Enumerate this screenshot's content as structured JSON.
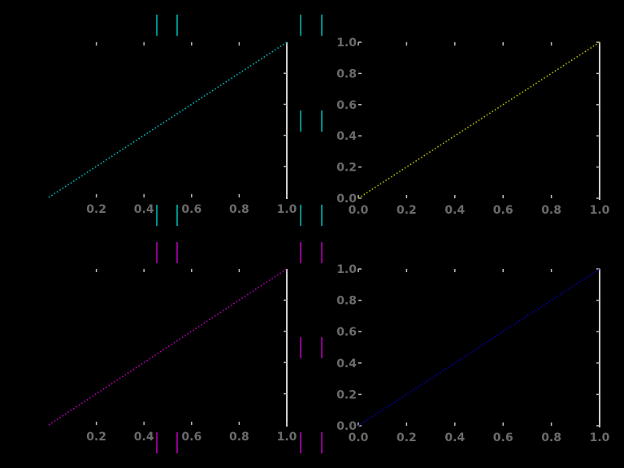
{
  "figure": {
    "background": "#000000"
  },
  "chart_data": [
    {
      "type": "line",
      "id": "top-left",
      "xlim": [
        0,
        1
      ],
      "ylim": [
        0,
        1
      ],
      "xticks": [
        "0.2",
        "0.4",
        "0.6",
        "0.8",
        "1.0"
      ],
      "yticks": [],
      "series": [
        {
          "color": "#00bfbf",
          "style": "dotted",
          "x": [
            0.0,
            1.0
          ],
          "y": [
            0.0,
            1.0
          ]
        }
      ]
    },
    {
      "type": "line",
      "id": "top-right",
      "xlim": [
        0,
        1
      ],
      "ylim": [
        0,
        1
      ],
      "xticks": [
        "0.0",
        "0.2",
        "0.4",
        "0.6",
        "0.8",
        "1.0"
      ],
      "yticks": [
        "0.0",
        "0.2",
        "0.4",
        "0.6",
        "0.8",
        "1.0"
      ],
      "series": [
        {
          "color": "#bfbf00",
          "style": "dotted",
          "x": [
            0.0,
            1.0
          ],
          "y": [
            0.0,
            1.0
          ]
        }
      ]
    },
    {
      "type": "line",
      "id": "bottom-left",
      "xlim": [
        0,
        1
      ],
      "ylim": [
        0,
        1
      ],
      "xticks": [
        "0.2",
        "0.4",
        "0.6",
        "0.8",
        "1.0"
      ],
      "yticks": [],
      "series": [
        {
          "color": "#bf00bf",
          "style": "dotted",
          "x": [
            0.0,
            1.0
          ],
          "y": [
            0.0,
            1.0
          ]
        }
      ]
    },
    {
      "type": "line",
      "id": "bottom-right",
      "xlim": [
        0,
        1
      ],
      "ylim": [
        0,
        1
      ],
      "xticks": [
        "0.0",
        "0.2",
        "0.4",
        "0.6",
        "0.8",
        "1.0"
      ],
      "yticks": [
        "0.0",
        "0.2",
        "0.4",
        "0.6",
        "0.8",
        "1.0"
      ],
      "series": [
        {
          "color": "#0000bf",
          "style": "dotted",
          "x": [
            0.0,
            1.0
          ],
          "y": [
            0.0,
            1.0
          ]
        }
      ]
    }
  ],
  "legend_markers": [
    {
      "color": "#00bfbf"
    },
    {
      "color": "#bf00bf"
    }
  ]
}
